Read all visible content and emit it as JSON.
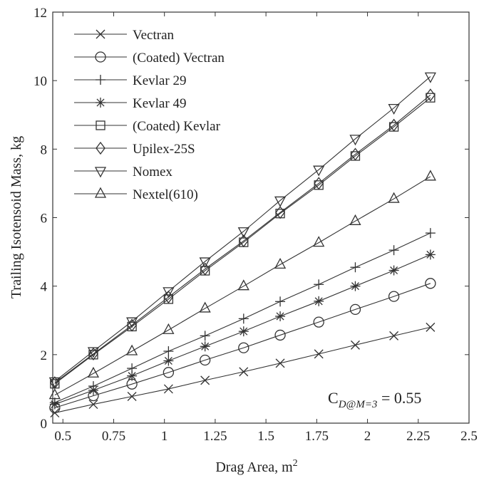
{
  "chart_data": {
    "type": "line",
    "title": "",
    "xlabel": "Drag Area, m",
    "xlabel_superscript": "2",
    "ylabel": "Trailing Isotensoid Mass, kg",
    "xlim": [
      0.45,
      2.5
    ],
    "ylim": [
      0,
      12
    ],
    "xticks": [
      0.5,
      0.75,
      1,
      1.25,
      1.5,
      1.75,
      2,
      2.25,
      2.5
    ],
    "xtick_labels": [
      "0.5",
      "0.75",
      "1",
      "1.25",
      "1.5",
      "1.75",
      "2",
      "2.25",
      "2.5"
    ],
    "yticks": [
      0,
      2,
      4,
      6,
      8,
      10,
      12
    ],
    "ytick_labels": [
      "0",
      "2",
      "4",
      "6",
      "8",
      "10",
      "12"
    ],
    "grid": false,
    "legend_position": "top-left",
    "annotation": {
      "main": "C",
      "subscript": "D@M=3",
      "suffix": " = 0.55"
    },
    "x": [
      0.46,
      0.65,
      0.84,
      1.02,
      1.2,
      1.39,
      1.57,
      1.76,
      1.94,
      2.13,
      2.31
    ],
    "series": [
      {
        "name": "Vectran",
        "marker": "x",
        "values": [
          0.3,
          0.55,
          0.78,
          1.0,
          1.25,
          1.5,
          1.75,
          2.02,
          2.28,
          2.55,
          2.8
        ]
      },
      {
        "name": "(Coated) Vectran",
        "marker": "circle",
        "values": [
          0.45,
          0.8,
          1.14,
          1.48,
          1.84,
          2.2,
          2.57,
          2.95,
          3.32,
          3.7,
          4.08
        ]
      },
      {
        "name": "Kevlar 29",
        "marker": "plus",
        "values": [
          0.6,
          1.08,
          1.6,
          2.1,
          2.55,
          3.05,
          3.55,
          4.05,
          4.55,
          5.05,
          5.55
        ]
      },
      {
        "name": "Kevlar 49",
        "marker": "star",
        "values": [
          0.55,
          0.96,
          1.38,
          1.82,
          2.24,
          2.68,
          3.12,
          3.56,
          4.0,
          4.46,
          4.92
        ]
      },
      {
        "name": "(Coated) Kevlar",
        "marker": "square",
        "values": [
          1.15,
          2.0,
          2.82,
          3.62,
          4.45,
          5.28,
          6.12,
          6.95,
          7.8,
          8.65,
          9.5
        ]
      },
      {
        "name": "Upilex-25S",
        "marker": "diamond",
        "values": [
          1.18,
          2.02,
          2.86,
          3.68,
          4.5,
          5.32,
          6.15,
          7.0,
          7.85,
          8.7,
          9.58
        ]
      },
      {
        "name": "Nomex",
        "marker": "triangle-down",
        "values": [
          1.22,
          2.1,
          2.97,
          3.85,
          4.72,
          5.6,
          6.5,
          7.4,
          8.3,
          9.2,
          10.12
        ]
      },
      {
        "name": "Nextel(610)",
        "marker": "triangle-up",
        "values": [
          0.82,
          1.45,
          2.1,
          2.72,
          3.35,
          4.0,
          4.63,
          5.27,
          5.9,
          6.55,
          7.2
        ]
      }
    ]
  }
}
